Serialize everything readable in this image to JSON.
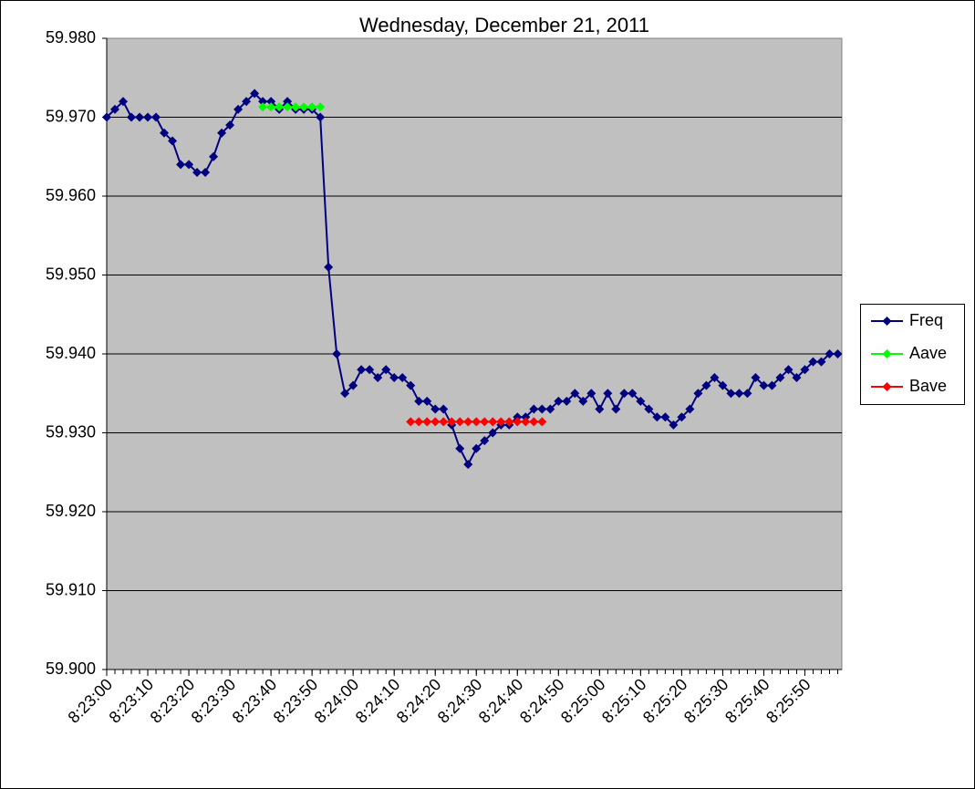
{
  "chart_data": {
    "type": "line",
    "title": "Wednesday, December 21, 2011",
    "x": [
      "8:23:00",
      "8:23:02",
      "8:23:04",
      "8:23:06",
      "8:23:08",
      "8:23:10",
      "8:23:12",
      "8:23:14",
      "8:23:16",
      "8:23:18",
      "8:23:20",
      "8:23:22",
      "8:23:24",
      "8:23:26",
      "8:23:28",
      "8:23:30",
      "8:23:32",
      "8:23:34",
      "8:23:36",
      "8:23:38",
      "8:23:40",
      "8:23:42",
      "8:23:44",
      "8:23:46",
      "8:23:48",
      "8:23:50",
      "8:23:52",
      "8:23:54",
      "8:23:56",
      "8:23:58",
      "8:24:00",
      "8:24:02",
      "8:24:04",
      "8:24:06",
      "8:24:08",
      "8:24:10",
      "8:24:12",
      "8:24:14",
      "8:24:16",
      "8:24:18",
      "8:24:20",
      "8:24:22",
      "8:24:24",
      "8:24:26",
      "8:24:28",
      "8:24:30",
      "8:24:32",
      "8:24:34",
      "8:24:36",
      "8:24:38",
      "8:24:40",
      "8:24:42",
      "8:24:44",
      "8:24:46",
      "8:24:48",
      "8:24:50",
      "8:24:52",
      "8:24:54",
      "8:24:56",
      "8:24:58",
      "8:25:00",
      "8:25:02",
      "8:25:04",
      "8:25:06",
      "8:25:08",
      "8:25:10",
      "8:25:12",
      "8:25:14",
      "8:25:16",
      "8:25:18",
      "8:25:20",
      "8:25:22",
      "8:25:24",
      "8:25:26",
      "8:25:28",
      "8:25:30",
      "8:25:32",
      "8:25:34",
      "8:25:36",
      "8:25:38",
      "8:25:40",
      "8:25:42",
      "8:25:44",
      "8:25:46",
      "8:25:48",
      "8:25:50",
      "8:25:52",
      "8:25:54",
      "8:25:56",
      "8:25:58"
    ],
    "series": [
      {
        "name": "Freq",
        "color": "#000080",
        "values": [
          59.97,
          59.971,
          59.972,
          59.97,
          59.97,
          59.97,
          59.97,
          59.968,
          59.967,
          59.964,
          59.964,
          59.963,
          59.963,
          59.965,
          59.968,
          59.969,
          59.971,
          59.972,
          59.973,
          59.972,
          59.972,
          59.971,
          59.972,
          59.971,
          59.971,
          59.971,
          59.97,
          59.951,
          59.94,
          59.935,
          59.936,
          59.938,
          59.938,
          59.937,
          59.938,
          59.937,
          59.937,
          59.936,
          59.934,
          59.934,
          59.933,
          59.933,
          59.931,
          59.928,
          59.926,
          59.928,
          59.929,
          59.93,
          59.931,
          59.931,
          59.932,
          59.932,
          59.933,
          59.933,
          59.933,
          59.934,
          59.934,
          59.935,
          59.934,
          59.935,
          59.933,
          59.935,
          59.933,
          59.935,
          59.935,
          59.934,
          59.933,
          59.932,
          59.932,
          59.931,
          59.932,
          59.933,
          59.935,
          59.936,
          59.937,
          59.936,
          59.935,
          59.935,
          59.935,
          59.937,
          59.936,
          59.936,
          59.937,
          59.938,
          59.937,
          59.938,
          59.939,
          59.939,
          59.94,
          59.94
        ]
      },
      {
        "name": "Aave",
        "color": "#00ff00",
        "values": [
          null,
          null,
          null,
          null,
          null,
          null,
          null,
          null,
          null,
          null,
          null,
          null,
          null,
          null,
          null,
          null,
          null,
          null,
          null,
          59.9713,
          59.9713,
          59.9713,
          59.9713,
          59.9713,
          59.9713,
          59.9713,
          59.9713,
          null,
          null,
          null,
          null,
          null,
          null,
          null,
          null,
          null,
          null,
          null,
          null,
          null,
          null,
          null,
          null,
          null,
          null,
          null,
          null,
          null,
          null,
          null,
          null,
          null,
          null,
          null,
          null,
          null,
          null,
          null,
          null,
          null,
          null,
          null,
          null,
          null,
          null,
          null,
          null,
          null,
          null,
          null,
          null,
          null,
          null,
          null,
          null,
          null,
          null,
          null,
          null,
          null,
          null,
          null,
          null,
          null,
          null,
          null,
          null,
          null,
          null,
          null
        ]
      },
      {
        "name": "Bave",
        "color": "#ff0000",
        "values": [
          null,
          null,
          null,
          null,
          null,
          null,
          null,
          null,
          null,
          null,
          null,
          null,
          null,
          null,
          null,
          null,
          null,
          null,
          null,
          null,
          null,
          null,
          null,
          null,
          null,
          null,
          null,
          null,
          null,
          null,
          null,
          null,
          null,
          null,
          null,
          null,
          null,
          59.9314,
          59.9314,
          59.9314,
          59.9314,
          59.9314,
          59.9314,
          59.9314,
          59.9314,
          59.9314,
          59.9314,
          59.9314,
          59.9314,
          59.9314,
          59.9314,
          59.9314,
          59.9314,
          59.9314,
          null,
          null,
          null,
          null,
          null,
          null,
          null,
          null,
          null,
          null,
          null,
          null,
          null,
          null,
          null,
          null,
          null,
          null,
          null,
          null,
          null,
          null,
          null,
          null,
          null,
          null,
          null,
          null,
          null,
          null,
          null,
          null,
          null,
          null,
          null,
          null
        ]
      }
    ],
    "xlim": [
      "8:23:00",
      "8:25:59"
    ],
    "xticks": [
      "8:23:00",
      "8:23:10",
      "8:23:20",
      "8:23:30",
      "8:23:40",
      "8:23:50",
      "8:24:00",
      "8:24:10",
      "8:24:20",
      "8:24:30",
      "8:24:40",
      "8:24:50",
      "8:25:00",
      "8:25:10",
      "8:25:20",
      "8:25:30",
      "8:25:40",
      "8:25:50"
    ],
    "ylim": [
      59.9,
      59.98
    ],
    "yticks": [
      {
        "value": 59.9,
        "label": "59.900"
      },
      {
        "value": 59.91,
        "label": "59.910"
      },
      {
        "value": 59.92,
        "label": "59.920"
      },
      {
        "value": 59.93,
        "label": "59.930"
      },
      {
        "value": 59.94,
        "label": "59.940"
      },
      {
        "value": 59.95,
        "label": "59.950"
      },
      {
        "value": 59.96,
        "label": "59.960"
      },
      {
        "value": 59.97,
        "label": "59.970"
      },
      {
        "value": 59.98,
        "label": "59.980"
      }
    ],
    "grid": true,
    "legend": "right"
  }
}
